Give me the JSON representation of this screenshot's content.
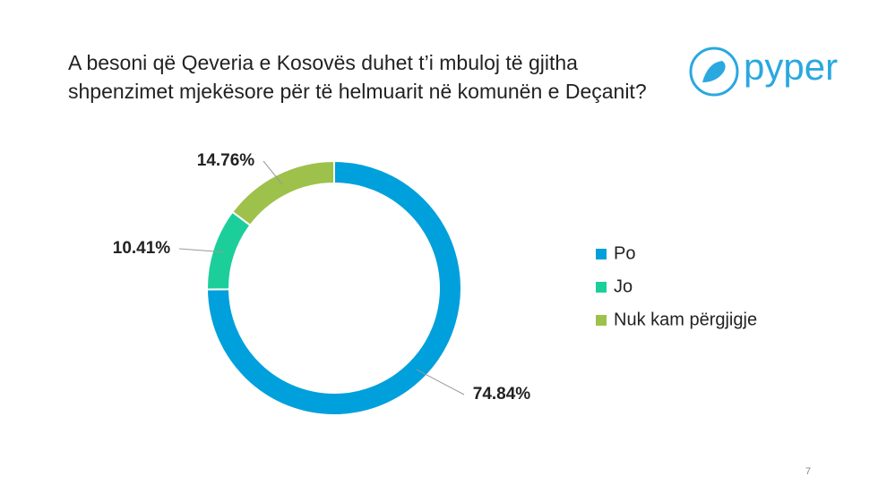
{
  "chart_data": {
    "type": "donut",
    "title": [
      "A besoni që Qeveria e Kosovës duhet t’i mbuloj të gjitha",
      "shpenzimet mjekësore për të helmuarit në komunën e Deçanit?"
    ],
    "categories": [
      "Po",
      "Jo",
      "Nuk kam përgjigje"
    ],
    "values": [
      74.84,
      10.41,
      14.76
    ],
    "value_labels": [
      "74.84%",
      "10.41%",
      "14.76%"
    ],
    "colors": [
      "#00a0dc",
      "#1ccf9a",
      "#9dc14a"
    ],
    "legend": "right"
  },
  "logo": "pyper",
  "page_number": "7"
}
